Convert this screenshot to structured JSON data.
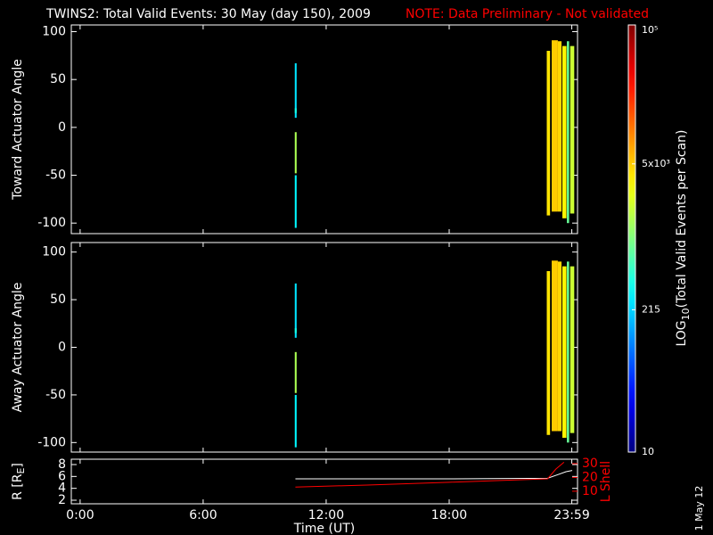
{
  "header": {
    "title": "TWINS2: Total Valid Events: 30 May (day 150), 2009",
    "note": "NOTE: Data Preliminary - Not validated",
    "date_stamp": "1 May 12"
  },
  "colorbar": {
    "label_main": "LOG",
    "label_sub": "10",
    "label_rest": "(Total Valid Events per Scan)",
    "zlim": [
      10,
      100000
    ],
    "log": true,
    "ticks": [
      {
        "value": 10,
        "label": "10"
      },
      {
        "value": 215,
        "label": "215"
      },
      {
        "value": 5000,
        "label": "5x10³"
      },
      {
        "value": 100000,
        "label": "10⁵"
      }
    ]
  },
  "chart_data": [
    {
      "type": "heatmap",
      "ylabel": "Toward Actuator Angle",
      "xlim": [
        -0.43,
        24.26
      ],
      "ylim": [
        -111,
        107
      ],
      "yticks": [
        -100,
        -50,
        0,
        50,
        100
      ],
      "blocks": [
        {
          "x": [
            10.47,
            10.56
          ],
          "y": [
            10,
            67
          ],
          "value": 250
        },
        {
          "x": [
            10.47,
            10.56
          ],
          "y": [
            15,
            20
          ],
          "value": 400
        },
        {
          "x": [
            10.47,
            10.56
          ],
          "y": [
            -48,
            -5
          ],
          "value": 1500
        },
        {
          "x": [
            10.47,
            10.56
          ],
          "y": [
            -105,
            -50
          ],
          "value": 300
        },
        {
          "x": [
            22.76,
            22.92
          ],
          "y": [
            -92,
            80
          ],
          "value": 4000
        },
        {
          "x": [
            23.0,
            23.3
          ],
          "y": [
            -88,
            91
          ],
          "value": 5000
        },
        {
          "x": [
            23.3,
            23.48
          ],
          "y": [
            -88,
            90
          ],
          "value": 4500
        },
        {
          "x": [
            23.52,
            23.72
          ],
          "y": [
            -95,
            85
          ],
          "value": 3500
        },
        {
          "x": [
            23.74,
            23.85
          ],
          "y": [
            -100,
            90
          ],
          "value": 800
        },
        {
          "x": [
            23.9,
            24.1
          ],
          "y": [
            -90,
            85
          ],
          "value": 2000
        }
      ]
    },
    {
      "type": "heatmap",
      "ylabel": "Away Actuator Angle",
      "xlim": [
        -0.43,
        24.26
      ],
      "ylim": [
        -110,
        110
      ],
      "yticks": [
        -100,
        -50,
        0,
        50,
        100
      ],
      "blocks": [
        {
          "x": [
            10.47,
            10.56
          ],
          "y": [
            10,
            67
          ],
          "value": 250
        },
        {
          "x": [
            10.47,
            10.56
          ],
          "y": [
            15,
            20
          ],
          "value": 400
        },
        {
          "x": [
            10.47,
            10.56
          ],
          "y": [
            -48,
            -5
          ],
          "value": 1500
        },
        {
          "x": [
            10.47,
            10.56
          ],
          "y": [
            -105,
            -50
          ],
          "value": 300
        },
        {
          "x": [
            22.76,
            22.92
          ],
          "y": [
            -92,
            80
          ],
          "value": 4000
        },
        {
          "x": [
            23.0,
            23.3
          ],
          "y": [
            -88,
            91
          ],
          "value": 5000
        },
        {
          "x": [
            23.3,
            23.48
          ],
          "y": [
            -88,
            90
          ],
          "value": 4500
        },
        {
          "x": [
            23.52,
            23.72
          ],
          "y": [
            -95,
            85
          ],
          "value": 3500
        },
        {
          "x": [
            23.74,
            23.85
          ],
          "y": [
            -100,
            90
          ],
          "value": 800
        },
        {
          "x": [
            23.9,
            24.1
          ],
          "y": [
            -90,
            85
          ],
          "value": 2000
        }
      ]
    },
    {
      "type": "line",
      "ylabel_main": "R [R",
      "ylabel_sub": "E",
      "ylabel_end": "]",
      "y2label": "L Shell",
      "xlabel": "Time (UT)",
      "xlim": [
        -0.43,
        24.26
      ],
      "xticks": [
        {
          "value": 0,
          "label": "0:00"
        },
        {
          "value": 6,
          "label": "6:00"
        },
        {
          "value": 12,
          "label": "12:00"
        },
        {
          "value": 18,
          "label": "18:00"
        },
        {
          "value": 23.98,
          "label": "23:59"
        }
      ],
      "ylim": [
        1.4,
        8.9
      ],
      "yticks": [
        2,
        4,
        6,
        8
      ],
      "y2lim": [
        0.9,
        33.2
      ],
      "y2ticks": [
        10,
        20,
        30
      ],
      "y2color": "#ff0000",
      "series": [
        {
          "color": "#ffffff",
          "x": [
            10.5,
            14,
            18,
            22.8,
            23.3,
            23.7,
            24.0
          ],
          "values": [
            5.6,
            5.6,
            5.6,
            5.7,
            6.3,
            6.8,
            7.0
          ]
        },
        {
          "color": "#ff0000",
          "axis": "y2",
          "x": [
            10.5,
            14,
            18,
            22.8,
            23.2,
            23.6
          ],
          "values": [
            13,
            14.5,
            16.5,
            19,
            26,
            31
          ]
        }
      ]
    }
  ]
}
